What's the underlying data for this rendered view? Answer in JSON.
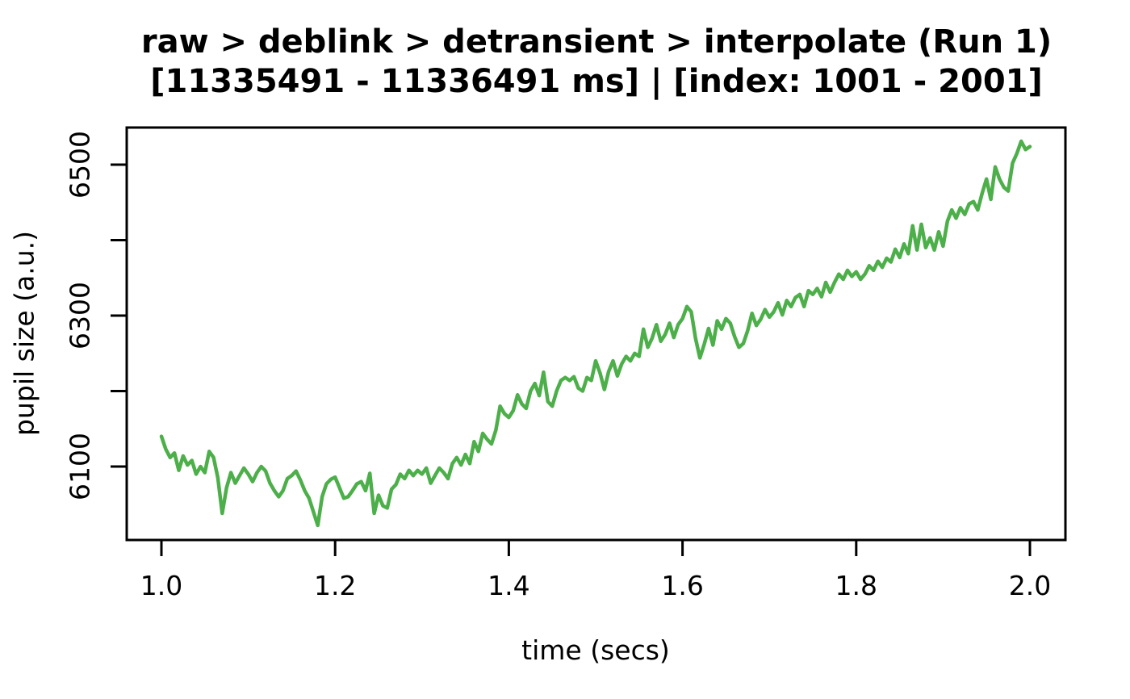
{
  "figure": {
    "title_line1": "raw > deblink > detransient > interpolate (Run 1)",
    "title_line2": "[11335491 - 11336491 ms] | [index: 1001 - 2001]",
    "xlabel": "time (secs)",
    "ylabel": "pupil size (a.u.)",
    "background_color": "#ffffff",
    "axis_color": "#000000"
  },
  "chart_data": {
    "type": "line",
    "title": "raw > deblink > detransient > interpolate (Run 1)",
    "subtitle": "[11335491 - 11336491 ms] | [index: 1001 - 2001]",
    "xlabel": "time (secs)",
    "ylabel": "pupil size (a.u.)",
    "xlim": [
      0.96,
      2.04
    ],
    "ylim": [
      6003,
      6549
    ],
    "x_ticks": [
      1.0,
      1.2,
      1.4,
      1.6,
      1.8,
      2.0
    ],
    "x_tick_labels": [
      "1.0",
      "1.2",
      "1.4",
      "1.6",
      "1.8",
      "2.0"
    ],
    "y_ticks": [
      6100,
      6200,
      6300,
      6400,
      6500
    ],
    "y_tick_labels": [
      "6100",
      "",
      "6300",
      "",
      "6500"
    ],
    "grid": false,
    "legend_position": "none",
    "line_color": "#4daf4a",
    "line_width": 4.5,
    "series": [
      {
        "name": "pupil size",
        "x_start": 1.0,
        "x_step": 0.005,
        "values": [
          6140,
          6123,
          6112,
          6118,
          6095,
          6114,
          6102,
          6108,
          6090,
          6100,
          6092,
          6120,
          6112,
          6085,
          6038,
          6072,
          6092,
          6078,
          6088,
          6098,
          6090,
          6080,
          6092,
          6100,
          6094,
          6078,
          6068,
          6060,
          6068,
          6084,
          6088,
          6094,
          6082,
          6068,
          6058,
          6040,
          6022,
          6060,
          6077,
          6083,
          6086,
          6072,
          6058,
          6060,
          6068,
          6077,
          6080,
          6068,
          6091,
          6038,
          6062,
          6048,
          6045,
          6070,
          6076,
          6090,
          6084,
          6095,
          6088,
          6095,
          6090,
          6098,
          6078,
          6088,
          6098,
          6092,
          6084,
          6104,
          6112,
          6102,
          6116,
          6104,
          6133,
          6120,
          6144,
          6136,
          6130,
          6148,
          6180,
          6170,
          6165,
          6174,
          6195,
          6183,
          6177,
          6200,
          6210,
          6194,
          6225,
          6186,
          6180,
          6200,
          6214,
          6218,
          6214,
          6219,
          6204,
          6200,
          6218,
          6214,
          6240,
          6224,
          6202,
          6226,
          6240,
          6220,
          6236,
          6246,
          6240,
          6250,
          6246,
          6282,
          6258,
          6270,
          6288,
          6266,
          6275,
          6290,
          6271,
          6288,
          6296,
          6312,
          6305,
          6270,
          6244,
          6262,
          6283,
          6261,
          6293,
          6282,
          6296,
          6290,
          6272,
          6258,
          6263,
          6280,
          6303,
          6287,
          6295,
          6308,
          6298,
          6305,
          6317,
          6301,
          6320,
          6312,
          6324,
          6328,
          6312,
          6333,
          6328,
          6336,
          6325,
          6344,
          6331,
          6344,
          6355,
          6348,
          6360,
          6352,
          6358,
          6348,
          6355,
          6366,
          6360,
          6372,
          6364,
          6376,
          6371,
          6388,
          6377,
          6395,
          6382,
          6419,
          6387,
          6421,
          6390,
          6403,
          6387,
          6411,
          6392,
          6425,
          6440,
          6429,
          6443,
          6434,
          6448,
          6451,
          6440,
          6462,
          6481,
          6454,
          6497,
          6481,
          6470,
          6465,
          6502,
          6515,
          6531,
          6520,
          6524
        ]
      }
    ]
  }
}
